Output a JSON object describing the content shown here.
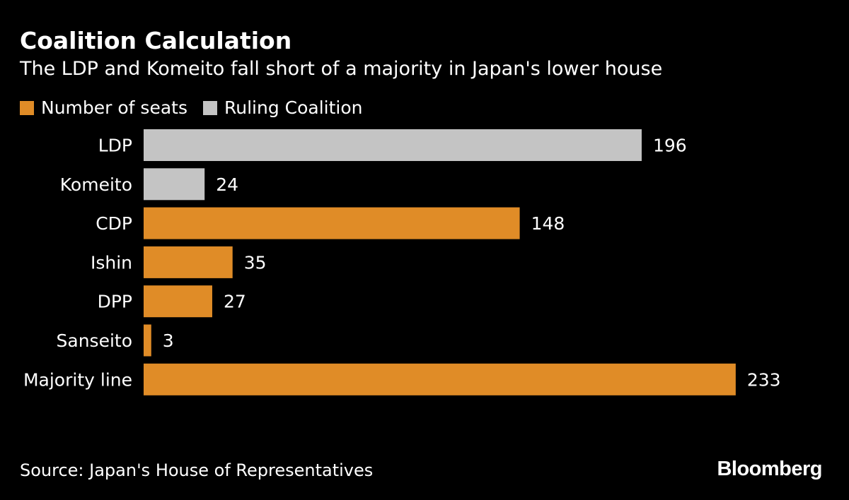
{
  "chart_data": {
    "type": "bar",
    "orientation": "horizontal",
    "title": "Coalition Calculation",
    "subtitle": "The LDP and Komeito fall short of a majority in Japan's lower house",
    "legend": [
      {
        "label": "Number of seats",
        "color": "#e08c27"
      },
      {
        "label": "Ruling Coalition",
        "color": "#c4c4c4"
      }
    ],
    "categories": [
      "LDP",
      "Komeito",
      "CDP",
      "Ishin",
      "DPP",
      "Sanseito",
      "Majority line"
    ],
    "values": [
      196,
      24,
      148,
      35,
      27,
      3,
      233
    ],
    "groups": [
      "Ruling Coalition",
      "Ruling Coalition",
      "Number of seats",
      "Number of seats",
      "Number of seats",
      "Number of seats",
      "Number of seats"
    ],
    "xlim": [
      0,
      240
    ],
    "xlabel": "",
    "ylabel": ""
  },
  "footer": {
    "source": "Source: Japan's House of Representatives",
    "brand": "Bloomberg"
  },
  "colors": {
    "background": "#000000",
    "seats": "#e08c27",
    "coalition": "#c4c4c4",
    "text": "#ffffff"
  }
}
